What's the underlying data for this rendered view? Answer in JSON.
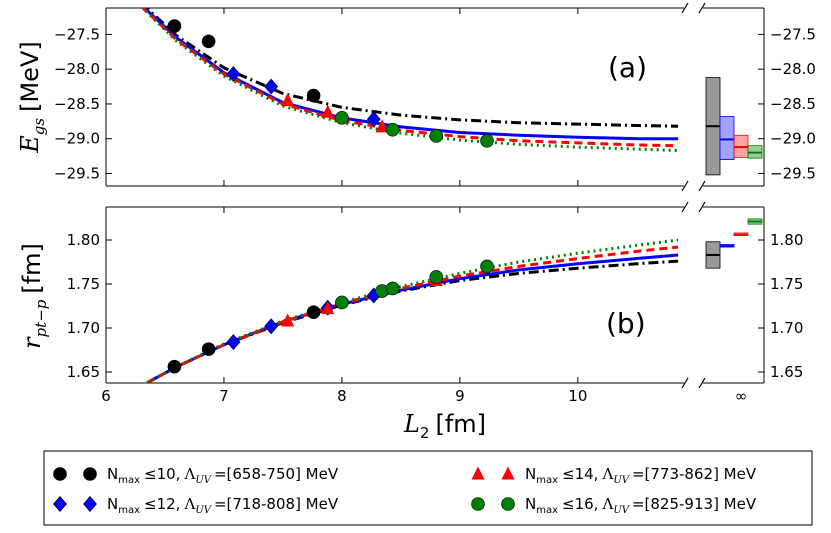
{
  "chart_data": [
    {
      "type": "line",
      "panel_label": "(a)",
      "ylabel_symbol": "E",
      "ylabel_sub": "gs",
      "ylabel_unit": "[MeV]",
      "xlim": [
        6,
        10.9
      ],
      "ylim": [
        -29.68,
        -27.12
      ],
      "yticks": [
        -27.5,
        -28.0,
        -28.5,
        -29.0,
        -29.5
      ],
      "ytick_labels": [
        "−27.5",
        "−28.0",
        "−28.5",
        "−29.0",
        "−29.5"
      ],
      "fits": [
        {
          "name": "Nmax≤10",
          "color": "#000000",
          "dash": "10,4,2,4",
          "x": [
            6.3,
            6.6,
            7.0,
            7.5,
            8.0,
            8.5,
            9.0,
            9.5,
            10.0,
            10.5,
            10.85
          ],
          "y": [
            -27.05,
            -27.52,
            -27.98,
            -28.35,
            -28.55,
            -28.66,
            -28.73,
            -28.77,
            -28.79,
            -28.81,
            -28.82
          ]
        },
        {
          "name": "Nmax≤12",
          "color": "#0000ff",
          "dash": "",
          "x": [
            6.3,
            6.6,
            7.0,
            7.5,
            8.0,
            8.5,
            9.0,
            9.5,
            10.0,
            10.5,
            10.85
          ],
          "y": [
            -27.08,
            -27.55,
            -28.05,
            -28.48,
            -28.7,
            -28.83,
            -28.91,
            -28.95,
            -28.98,
            -29.0,
            -29.0
          ]
        },
        {
          "name": "Nmax≤14",
          "color": "#ff0000",
          "dash": "8,5",
          "x": [
            6.3,
            6.6,
            7.0,
            7.5,
            8.0,
            8.5,
            9.0,
            9.5,
            10.0,
            10.5,
            10.85
          ],
          "y": [
            -27.1,
            -27.58,
            -28.07,
            -28.5,
            -28.74,
            -28.88,
            -28.97,
            -29.03,
            -29.06,
            -29.09,
            -29.1
          ]
        },
        {
          "name": "Nmax≤16",
          "color": "#008000",
          "dash": "2,4",
          "x": [
            6.3,
            6.6,
            7.0,
            7.5,
            8.0,
            8.5,
            9.0,
            9.5,
            10.0,
            10.5,
            10.85
          ],
          "y": [
            -27.1,
            -27.6,
            -28.1,
            -28.53,
            -28.77,
            -28.92,
            -29.02,
            -29.08,
            -29.12,
            -29.15,
            -29.17
          ]
        }
      ],
      "points": [
        {
          "name": "Nmax≤10",
          "marker": "circle",
          "color": "#000000",
          "x": [
            6.58,
            6.87,
            7.76
          ],
          "y": [
            -27.38,
            -27.6,
            -28.38
          ]
        },
        {
          "name": "Nmax≤12",
          "marker": "diamond",
          "color": "#0000ff",
          "x": [
            7.08,
            7.4,
            8.27
          ],
          "y": [
            -28.07,
            -28.25,
            -28.72
          ]
        },
        {
          "name": "Nmax≤14",
          "marker": "triangle",
          "color": "#ff0000",
          "x": [
            7.54,
            7.88,
            8.34
          ],
          "y": [
            -28.45,
            -28.62,
            -28.83
          ]
        },
        {
          "name": "Nmax≤16",
          "marker": "circle",
          "color": "#008000",
          "x": [
            8.0,
            8.43,
            8.8,
            9.23
          ],
          "y": [
            -28.7,
            -28.87,
            -28.96,
            -29.03
          ]
        }
      ],
      "infinity_boxes": [
        {
          "color": "#000000",
          "fill": "#808080",
          "low": -29.52,
          "high": -28.12,
          "mid": -28.82
        },
        {
          "color": "#0000ff",
          "fill": "#8c8cff",
          "low": -29.3,
          "high": -28.68,
          "mid": -29.01
        },
        {
          "color": "#ff0000",
          "fill": "#ff8c8c",
          "low": -29.27,
          "high": -28.95,
          "mid": -29.12
        },
        {
          "color": "#008000",
          "fill": "#7fbf7f",
          "low": -29.28,
          "high": -29.1,
          "mid": -29.2
        }
      ]
    },
    {
      "type": "line",
      "panel_label": "(b)",
      "ylabel_symbol": "r",
      "ylabel_sub": "pt−p",
      "ylabel_unit": "[fm]",
      "xlim": [
        6,
        10.9
      ],
      "ylim": [
        1.6375,
        1.8375
      ],
      "yticks": [
        1.65,
        1.7,
        1.75,
        1.8
      ],
      "ytick_labels": [
        "1.65",
        "1.70",
        "1.75",
        "1.80"
      ],
      "xticks": [
        6,
        7,
        8,
        9,
        10
      ],
      "xtick_labels": [
        "6",
        "7",
        "8",
        "9",
        "10"
      ],
      "infinity_label": "∞",
      "xlabel_symbol": "L",
      "xlabel_sub": "2",
      "xlabel_unit": "[fm]",
      "fits": [
        {
          "name": "Nmax≤10",
          "color": "#000000",
          "dash": "10,4,2,4",
          "x": [
            6.35,
            6.6,
            7.0,
            7.5,
            8.0,
            8.5,
            9.0,
            9.5,
            10.0,
            10.5,
            10.85
          ],
          "y": [
            1.638,
            1.656,
            1.681,
            1.706,
            1.726,
            1.742,
            1.754,
            1.762,
            1.768,
            1.773,
            1.776
          ]
        },
        {
          "name": "Nmax≤12",
          "color": "#0000ff",
          "dash": "",
          "x": [
            6.35,
            6.6,
            7.0,
            7.5,
            8.0,
            8.5,
            9.0,
            9.5,
            10.0,
            10.5,
            10.85
          ],
          "y": [
            1.638,
            1.656,
            1.681,
            1.707,
            1.727,
            1.743,
            1.756,
            1.766,
            1.773,
            1.779,
            1.783
          ]
        },
        {
          "name": "Nmax≤14",
          "color": "#ff0000",
          "dash": "8,5",
          "x": [
            6.35,
            6.6,
            7.0,
            7.5,
            8.0,
            8.5,
            9.0,
            9.5,
            10.0,
            10.5,
            10.85
          ],
          "y": [
            1.638,
            1.656,
            1.681,
            1.707,
            1.728,
            1.745,
            1.759,
            1.77,
            1.779,
            1.787,
            1.792
          ]
        },
        {
          "name": "Nmax≤16",
          "color": "#008000",
          "dash": "2,4",
          "x": [
            6.35,
            6.6,
            7.0,
            7.5,
            8.0,
            8.5,
            9.0,
            9.5,
            10.0,
            10.5,
            10.85
          ],
          "y": [
            1.638,
            1.656,
            1.682,
            1.708,
            1.729,
            1.747,
            1.762,
            1.775,
            1.785,
            1.794,
            1.8
          ]
        }
      ],
      "points": [
        {
          "name": "Nmax≤10",
          "marker": "circle",
          "color": "#000000",
          "x": [
            6.58,
            6.87,
            7.76
          ],
          "y": [
            1.656,
            1.676,
            1.718
          ]
        },
        {
          "name": "Nmax≤12",
          "marker": "diamond",
          "color": "#0000ff",
          "x": [
            7.08,
            7.4,
            7.88,
            8.27
          ],
          "y": [
            1.684,
            1.702,
            1.723,
            1.737
          ]
        },
        {
          "name": "Nmax≤14",
          "marker": "triangle",
          "color": "#ff0000",
          "x": [
            7.54,
            7.88,
            8.8
          ],
          "y": [
            1.708,
            1.722,
            1.754
          ]
        },
        {
          "name": "Nmax≤16",
          "marker": "circle",
          "color": "#008000",
          "x": [
            8.0,
            8.34,
            8.43,
            8.8,
            9.23
          ],
          "y": [
            1.729,
            1.742,
            1.745,
            1.758,
            1.77
          ]
        }
      ],
      "infinity_boxes": [
        {
          "color": "#000000",
          "fill": "#808080",
          "low": 1.768,
          "high": 1.798,
          "mid": 1.783
        },
        {
          "color": "#0000ff",
          "fill": "#8c8cff",
          "low": 1.792,
          "high": 1.795,
          "mid": 1.793
        },
        {
          "color": "#ff0000",
          "fill": "#ff8c8c",
          "low": 1.805,
          "high": 1.808,
          "mid": 1.806
        },
        {
          "color": "#008000",
          "fill": "#7fbf7f",
          "low": 1.818,
          "high": 1.824,
          "mid": 1.821
        }
      ]
    }
  ],
  "legend": [
    {
      "marker": "circle",
      "color": "#000000",
      "nmax": "≤10,",
      "range": "=[658-750] MeV"
    },
    {
      "marker": "diamond",
      "color": "#0000ff",
      "nmax": "≤12,",
      "range": "=[718-808] MeV"
    },
    {
      "marker": "triangle",
      "color": "#ff0000",
      "nmax": "≤14,",
      "range": "=[773-862] MeV"
    },
    {
      "marker": "circle",
      "color": "#008000",
      "nmax": "≤16,",
      "range": "=[825-913] MeV"
    }
  ],
  "legend_text": {
    "n": "N",
    "max": "max",
    "lambda": "Λ",
    "uv": "UV"
  }
}
